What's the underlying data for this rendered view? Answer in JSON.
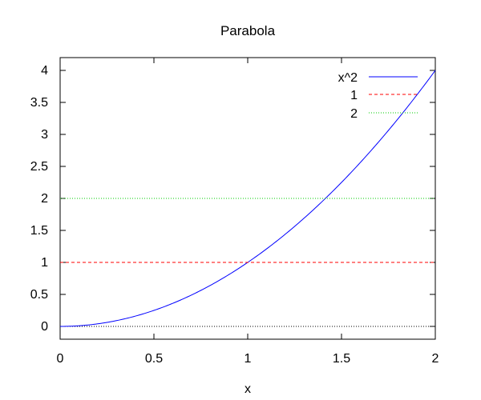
{
  "chart_data": {
    "type": "line",
    "title": "Parabola",
    "xlabel": "x",
    "ylabel": "",
    "xlim": [
      0,
      2
    ],
    "ylim": [
      -0.2,
      4.2
    ],
    "x_ticks": [
      0,
      0.5,
      1,
      1.5,
      2
    ],
    "x_tick_labels": [
      "0",
      "0.5",
      "1",
      "1.5",
      "2"
    ],
    "y_ticks": [
      0,
      0.5,
      1,
      1.5,
      2,
      2.5,
      3,
      3.5,
      4
    ],
    "y_tick_labels": [
      "0",
      "0.5",
      "1",
      "1.5",
      "2",
      "2.5",
      "3",
      "3.5",
      "4"
    ],
    "grid": false,
    "legend_position": "top-right",
    "zero_line": {
      "y": 0,
      "color": "#000000",
      "style": "dotted"
    },
    "series": [
      {
        "name": "x^2",
        "color": "#0000ff",
        "style": "solid",
        "x": [
          0,
          0.1,
          0.2,
          0.3,
          0.4,
          0.5,
          0.6,
          0.7,
          0.8,
          0.9,
          1.0,
          1.1,
          1.2,
          1.3,
          1.4,
          1.5,
          1.6,
          1.7,
          1.8,
          1.9,
          2.0
        ],
        "y": [
          0,
          0.01,
          0.04,
          0.09,
          0.16,
          0.25,
          0.36,
          0.49,
          0.64,
          0.81,
          1.0,
          1.21,
          1.44,
          1.69,
          1.96,
          2.25,
          2.56,
          2.89,
          3.24,
          3.61,
          4.0
        ]
      },
      {
        "name": "1",
        "color": "#ff0000",
        "style": "dashed",
        "x": [
          0,
          2
        ],
        "y": [
          1,
          1
        ]
      },
      {
        "name": "2",
        "color": "#00cc00",
        "style": "dotted",
        "x": [
          0,
          2
        ],
        "y": [
          2,
          2
        ]
      }
    ]
  }
}
